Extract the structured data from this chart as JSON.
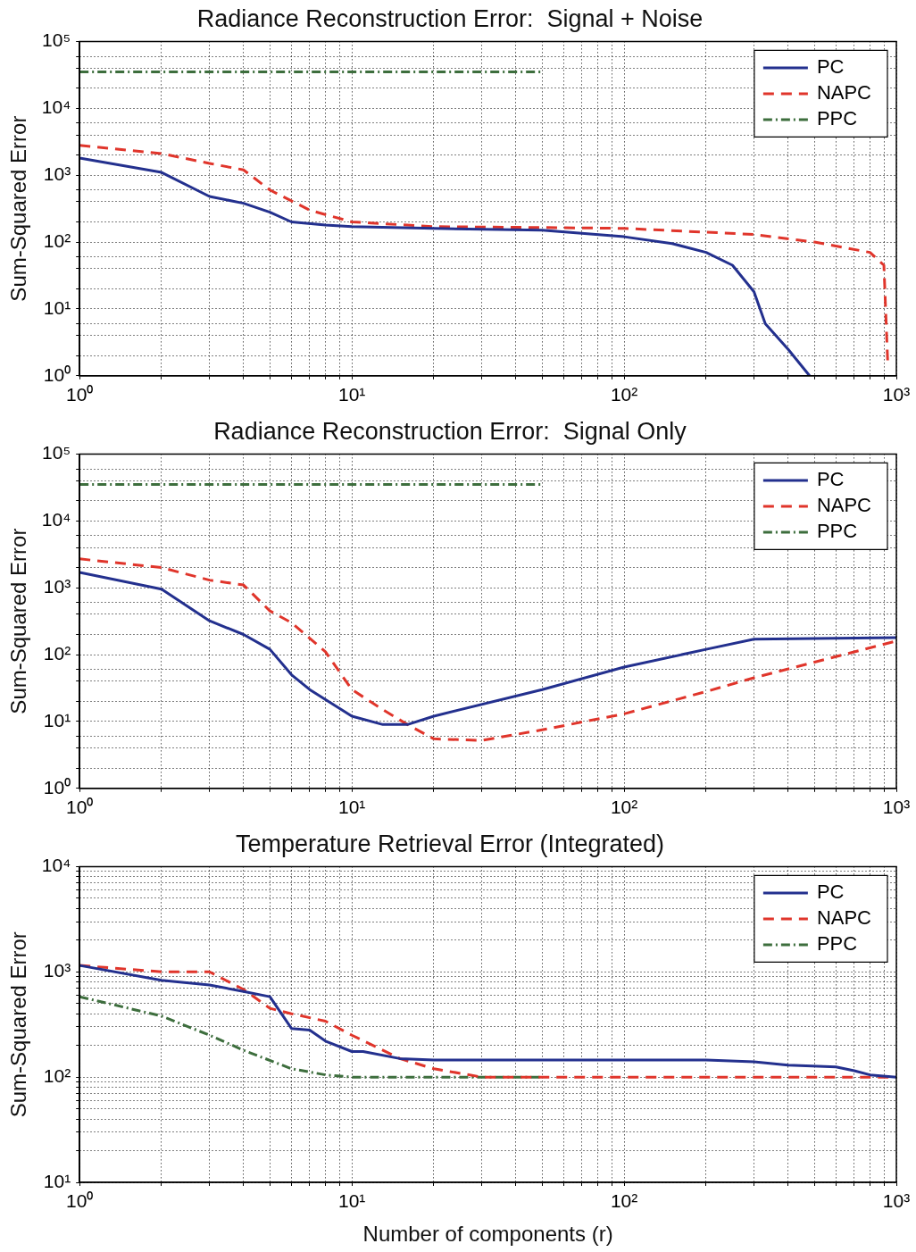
{
  "chart_data": [
    {
      "type": "line",
      "title": "Radiance Reconstruction Error:  Signal + Noise",
      "ylabel": "Sum-Squared Error",
      "log": "xy",
      "grid": true,
      "legend": "top right",
      "xlim": [
        1,
        1000
      ],
      "ylim": [
        1,
        100000
      ],
      "xticks": [
        {
          "value": 1,
          "label": "10⁰"
        },
        {
          "value": 2,
          "label": null
        },
        {
          "value": 3,
          "label": null
        },
        {
          "value": 4,
          "label": null
        },
        {
          "value": 5,
          "label": null
        },
        {
          "value": 6,
          "label": null
        },
        {
          "value": 7,
          "label": null
        },
        {
          "value": 8,
          "label": null
        },
        {
          "value": 9,
          "label": null
        },
        {
          "value": 10,
          "label": "10¹"
        },
        {
          "value": 20,
          "label": null
        },
        {
          "value": 30,
          "label": null
        },
        {
          "value": 40,
          "label": null
        },
        {
          "value": 50,
          "label": null
        },
        {
          "value": 60,
          "label": null
        },
        {
          "value": 70,
          "label": null
        },
        {
          "value": 80,
          "label": null
        },
        {
          "value": 90,
          "label": null
        },
        {
          "value": 100,
          "label": "10²"
        },
        {
          "value": 200,
          "label": null
        },
        {
          "value": 300,
          "label": null
        },
        {
          "value": 400,
          "label": null
        },
        {
          "value": 500,
          "label": null
        },
        {
          "value": 600,
          "label": null
        },
        {
          "value": 700,
          "label": null
        },
        {
          "value": 800,
          "label": null
        },
        {
          "value": 900,
          "label": null
        },
        {
          "value": 1000,
          "label": "10³"
        }
      ],
      "yticks": [
        {
          "value": 1,
          "label": "10⁰"
        },
        {
          "value": 2,
          "label": null
        },
        {
          "value": 4,
          "label": null
        },
        {
          "value": 6,
          "label": null
        },
        {
          "value": 10,
          "label": "10¹"
        },
        {
          "value": 20,
          "label": null
        },
        {
          "value": 40,
          "label": null
        },
        {
          "value": 60,
          "label": null
        },
        {
          "value": 100,
          "label": "10²"
        },
        {
          "value": 200,
          "label": null
        },
        {
          "value": 400,
          "label": null
        },
        {
          "value": 600,
          "label": null
        },
        {
          "value": 1000,
          "label": "10³"
        },
        {
          "value": 2000,
          "label": null
        },
        {
          "value": 4000,
          "label": null
        },
        {
          "value": 6000,
          "label": null
        },
        {
          "value": 10000,
          "label": "10⁴"
        },
        {
          "value": 20000,
          "label": null
        },
        {
          "value": 40000,
          "label": null
        },
        {
          "value": 60000,
          "label": null
        },
        {
          "value": 100000,
          "label": "10⁵"
        }
      ],
      "series": [
        {
          "name": "PC",
          "color": "#23308e",
          "line_style": "solid",
          "x": [
            1,
            2,
            3,
            4,
            5,
            6,
            8,
            10,
            20,
            50,
            100,
            150,
            200,
            250,
            300,
            330,
            400,
            480
          ],
          "values": [
            1800,
            1100,
            480,
            380,
            280,
            200,
            180,
            170,
            160,
            150,
            120,
            95,
            70,
            45,
            18,
            6,
            2.5,
            1
          ]
        },
        {
          "name": "NAPC",
          "color": "#e0352b",
          "line_style": "dashed",
          "x": [
            1,
            2,
            3,
            4,
            5,
            7,
            10,
            20,
            50,
            100,
            300,
            500,
            800,
            900,
            930
          ],
          "values": [
            2800,
            2100,
            1500,
            1200,
            600,
            300,
            200,
            170,
            165,
            160,
            130,
            100,
            70,
            45,
            1.5
          ]
        },
        {
          "name": "PPC",
          "color": "#3d6e3d",
          "line_style": "dotted",
          "x": [
            1,
            50
          ],
          "values": [
            35000,
            35000
          ]
        }
      ]
    },
    {
      "type": "line",
      "title": "Radiance Reconstruction Error:  Signal Only",
      "ylabel": "Sum-Squared Error",
      "log": "xy",
      "grid": true,
      "legend": "top right",
      "xlim": [
        1,
        1000
      ],
      "ylim": [
        1,
        100000
      ],
      "xticks": [
        {
          "value": 1,
          "label": "10⁰"
        },
        {
          "value": 2,
          "label": null
        },
        {
          "value": 3,
          "label": null
        },
        {
          "value": 4,
          "label": null
        },
        {
          "value": 5,
          "label": null
        },
        {
          "value": 6,
          "label": null
        },
        {
          "value": 7,
          "label": null
        },
        {
          "value": 8,
          "label": null
        },
        {
          "value": 9,
          "label": null
        },
        {
          "value": 10,
          "label": "10¹"
        },
        {
          "value": 20,
          "label": null
        },
        {
          "value": 30,
          "label": null
        },
        {
          "value": 40,
          "label": null
        },
        {
          "value": 50,
          "label": null
        },
        {
          "value": 60,
          "label": null
        },
        {
          "value": 70,
          "label": null
        },
        {
          "value": 80,
          "label": null
        },
        {
          "value": 90,
          "label": null
        },
        {
          "value": 100,
          "label": "10²"
        },
        {
          "value": 200,
          "label": null
        },
        {
          "value": 300,
          "label": null
        },
        {
          "value": 400,
          "label": null
        },
        {
          "value": 500,
          "label": null
        },
        {
          "value": 600,
          "label": null
        },
        {
          "value": 700,
          "label": null
        },
        {
          "value": 800,
          "label": null
        },
        {
          "value": 900,
          "label": null
        },
        {
          "value": 1000,
          "label": "10³"
        }
      ],
      "yticks": [
        {
          "value": 1,
          "label": "10⁰"
        },
        {
          "value": 2,
          "label": null
        },
        {
          "value": 4,
          "label": null
        },
        {
          "value": 6,
          "label": null
        },
        {
          "value": 10,
          "label": "10¹"
        },
        {
          "value": 20,
          "label": null
        },
        {
          "value": 40,
          "label": null
        },
        {
          "value": 60,
          "label": null
        },
        {
          "value": 100,
          "label": "10²"
        },
        {
          "value": 200,
          "label": null
        },
        {
          "value": 400,
          "label": null
        },
        {
          "value": 600,
          "label": null
        },
        {
          "value": 1000,
          "label": "10³"
        },
        {
          "value": 2000,
          "label": null
        },
        {
          "value": 4000,
          "label": null
        },
        {
          "value": 6000,
          "label": null
        },
        {
          "value": 10000,
          "label": "10⁴"
        },
        {
          "value": 20000,
          "label": null
        },
        {
          "value": 40000,
          "label": null
        },
        {
          "value": 60000,
          "label": null
        },
        {
          "value": 100000,
          "label": "10⁵"
        }
      ],
      "series": [
        {
          "name": "PC",
          "color": "#23308e",
          "line_style": "solid",
          "x": [
            1,
            2,
            3,
            4,
            5,
            6,
            7,
            10,
            13,
            16,
            20,
            50,
            100,
            200,
            300,
            1000
          ],
          "values": [
            1700,
            950,
            320,
            200,
            120,
            50,
            30,
            12,
            9,
            9,
            12,
            30,
            65,
            120,
            170,
            180
          ]
        },
        {
          "name": "NAPC",
          "color": "#e0352b",
          "line_style": "dashed",
          "x": [
            1,
            2,
            3,
            4,
            5,
            6,
            8,
            10,
            13,
            16,
            20,
            30,
            50,
            100,
            200,
            300,
            1000
          ],
          "values": [
            2700,
            2000,
            1300,
            1100,
            450,
            300,
            110,
            30,
            15,
            9,
            5.5,
            5.2,
            7.5,
            13,
            28,
            45,
            160
          ]
        },
        {
          "name": "PPC",
          "color": "#3d6e3d",
          "line_style": "dotted",
          "x": [
            1,
            50
          ],
          "values": [
            35000,
            35000
          ]
        }
      ]
    },
    {
      "type": "line",
      "title": "Temperature Retrieval Error (Integrated)",
      "xlabel": "Number of components (r)",
      "ylabel": "Sum-Squared Error",
      "log": "xy",
      "grid": true,
      "legend": "top right",
      "xlim": [
        1,
        1000
      ],
      "ylim": [
        10,
        10000
      ],
      "xticks": [
        {
          "value": 1,
          "label": "10⁰"
        },
        {
          "value": 2,
          "label": null
        },
        {
          "value": 3,
          "label": null
        },
        {
          "value": 4,
          "label": null
        },
        {
          "value": 5,
          "label": null
        },
        {
          "value": 6,
          "label": null
        },
        {
          "value": 7,
          "label": null
        },
        {
          "value": 8,
          "label": null
        },
        {
          "value": 9,
          "label": null
        },
        {
          "value": 10,
          "label": "10¹"
        },
        {
          "value": 20,
          "label": null
        },
        {
          "value": 30,
          "label": null
        },
        {
          "value": 40,
          "label": null
        },
        {
          "value": 50,
          "label": null
        },
        {
          "value": 60,
          "label": null
        },
        {
          "value": 70,
          "label": null
        },
        {
          "value": 80,
          "label": null
        },
        {
          "value": 90,
          "label": null
        },
        {
          "value": 100,
          "label": "10²"
        },
        {
          "value": 200,
          "label": null
        },
        {
          "value": 300,
          "label": null
        },
        {
          "value": 400,
          "label": null
        },
        {
          "value": 500,
          "label": null
        },
        {
          "value": 600,
          "label": null
        },
        {
          "value": 700,
          "label": null
        },
        {
          "value": 800,
          "label": null
        },
        {
          "value": 900,
          "label": null
        },
        {
          "value": 1000,
          "label": "10³"
        }
      ],
      "yticks": [
        {
          "value": 10,
          "label": "10¹"
        },
        {
          "value": 20,
          "label": null
        },
        {
          "value": 30,
          "label": null
        },
        {
          "value": 40,
          "label": null
        },
        {
          "value": 50,
          "label": null
        },
        {
          "value": 60,
          "label": null
        },
        {
          "value": 70,
          "label": null
        },
        {
          "value": 80,
          "label": null
        },
        {
          "value": 90,
          "label": null
        },
        {
          "value": 100,
          "label": "10²"
        },
        {
          "value": 200,
          "label": null
        },
        {
          "value": 300,
          "label": null
        },
        {
          "value": 400,
          "label": null
        },
        {
          "value": 500,
          "label": null
        },
        {
          "value": 600,
          "label": null
        },
        {
          "value": 700,
          "label": null
        },
        {
          "value": 800,
          "label": null
        },
        {
          "value": 900,
          "label": null
        },
        {
          "value": 1000,
          "label": "10³"
        },
        {
          "value": 2000,
          "label": null
        },
        {
          "value": 3000,
          "label": null
        },
        {
          "value": 4000,
          "label": null
        },
        {
          "value": 5000,
          "label": null
        },
        {
          "value": 6000,
          "label": null
        },
        {
          "value": 7000,
          "label": null
        },
        {
          "value": 8000,
          "label": null
        },
        {
          "value": 9000,
          "label": null
        },
        {
          "value": 10000,
          "label": "10⁴"
        }
      ],
      "series": [
        {
          "name": "PC",
          "color": "#23308e",
          "line_style": "solid",
          "x": [
            1,
            2,
            3,
            4,
            5,
            6,
            7,
            8,
            10,
            11,
            15,
            20,
            100,
            200,
            300,
            400,
            600,
            700,
            800,
            1000
          ],
          "values": [
            1150,
            830,
            750,
            650,
            580,
            290,
            280,
            220,
            175,
            175,
            150,
            145,
            145,
            145,
            140,
            130,
            125,
            115,
            105,
            100
          ]
        },
        {
          "name": "NAPC",
          "color": "#e0352b",
          "line_style": "dashed",
          "x": [
            1,
            2,
            3,
            4,
            5,
            6,
            8,
            10,
            15,
            20,
            30,
            1000
          ],
          "values": [
            1150,
            1000,
            1000,
            680,
            450,
            400,
            340,
            250,
            150,
            120,
            100,
            100
          ]
        },
        {
          "name": "PPC",
          "color": "#3d6e3d",
          "line_style": "dotted",
          "x": [
            1,
            2,
            3,
            4,
            6,
            8,
            10,
            50
          ],
          "values": [
            580,
            380,
            250,
            180,
            120,
            105,
            100,
            100
          ]
        }
      ]
    }
  ]
}
